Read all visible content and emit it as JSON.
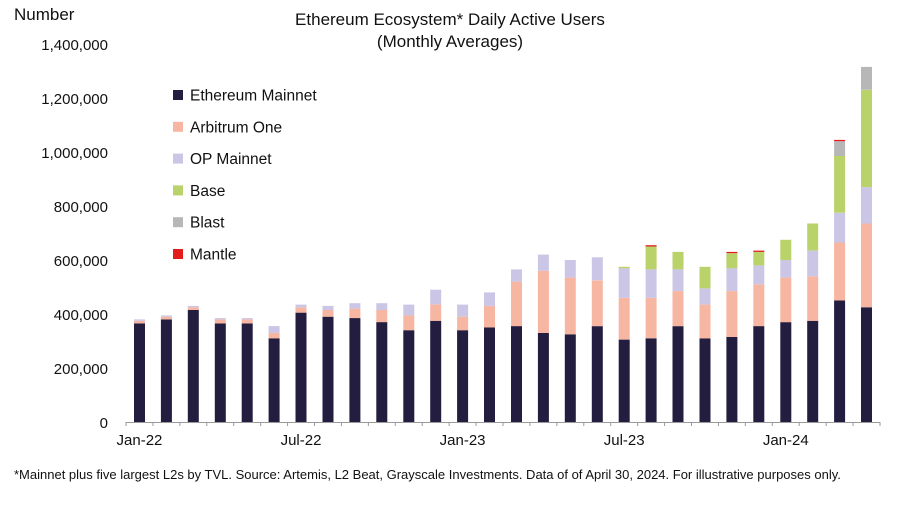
{
  "chart_data": {
    "type": "bar",
    "stacked": true,
    "title": "Ethereum Ecosystem* Daily Active Users",
    "subtitle": "(Monthly Averages)",
    "ylabel": "Number",
    "xlabel": "",
    "ylim": [
      0,
      1400000
    ],
    "yticks": [
      0,
      200000,
      400000,
      600000,
      800000,
      1000000,
      1200000,
      1400000
    ],
    "ytick_labels": [
      "0",
      "200,000",
      "400,000",
      "600,000",
      "800,000",
      "1,000,000",
      "1,200,000",
      "1,400,000"
    ],
    "categories": [
      "Jan-22",
      "Feb-22",
      "Mar-22",
      "Apr-22",
      "May-22",
      "Jun-22",
      "Jul-22",
      "Aug-22",
      "Sep-22",
      "Oct-22",
      "Nov-22",
      "Dec-22",
      "Jan-23",
      "Feb-23",
      "Mar-23",
      "Apr-23",
      "May-23",
      "Jun-23",
      "Jul-23",
      "Aug-23",
      "Sep-23",
      "Oct-23",
      "Nov-23",
      "Dec-23",
      "Jan-24",
      "Feb-24",
      "Mar-24",
      "Apr-24"
    ],
    "xtick_labels": [
      {
        "index": 0,
        "label": "Jan-22"
      },
      {
        "index": 6,
        "label": "Jul-22"
      },
      {
        "index": 12,
        "label": "Jan-23"
      },
      {
        "index": 18,
        "label": "Jul-23"
      },
      {
        "index": 24,
        "label": "Jan-24"
      }
    ],
    "legend_position": "top-left",
    "grid": false,
    "series": [
      {
        "name": "Ethereum Mainnet",
        "color": "#231d3f",
        "values": [
          365000,
          380000,
          415000,
          365000,
          365000,
          310000,
          405000,
          390000,
          385000,
          370000,
          340000,
          375000,
          340000,
          350000,
          355000,
          330000,
          325000,
          355000,
          305000,
          310000,
          355000,
          310000,
          315000,
          355000,
          370000,
          375000,
          450000,
          425000
        ]
      },
      {
        "name": "Arbitrum One",
        "color": "#f7b6a1",
        "values": [
          10000,
          10000,
          10000,
          15000,
          15000,
          20000,
          20000,
          25000,
          35000,
          45000,
          55000,
          60000,
          50000,
          80000,
          165000,
          230000,
          210000,
          170000,
          155000,
          150000,
          130000,
          125000,
          170000,
          155000,
          165000,
          165000,
          215000,
          310000
        ]
      },
      {
        "name": "OP Mainnet",
        "color": "#cbc6e6",
        "values": [
          5000,
          5000,
          5000,
          5000,
          5000,
          25000,
          10000,
          15000,
          20000,
          25000,
          40000,
          55000,
          45000,
          50000,
          45000,
          60000,
          65000,
          85000,
          110000,
          105000,
          80000,
          60000,
          85000,
          70000,
          65000,
          95000,
          110000,
          135000
        ]
      },
      {
        "name": "Base",
        "color": "#b9d26a",
        "values": [
          0,
          0,
          0,
          0,
          0,
          0,
          0,
          0,
          0,
          0,
          0,
          0,
          0,
          0,
          0,
          0,
          0,
          0,
          5000,
          85000,
          65000,
          80000,
          55000,
          50000,
          75000,
          100000,
          210000,
          360000
        ]
      },
      {
        "name": "Blast",
        "color": "#b7b7b7",
        "values": [
          0,
          0,
          0,
          0,
          0,
          0,
          0,
          0,
          0,
          0,
          0,
          0,
          0,
          0,
          0,
          0,
          0,
          0,
          0,
          0,
          0,
          0,
          0,
          0,
          0,
          0,
          55000,
          85000
        ]
      },
      {
        "name": "Mantle",
        "color": "#e31c1c",
        "values": [
          0,
          0,
          0,
          0,
          0,
          0,
          0,
          0,
          0,
          0,
          0,
          0,
          0,
          0,
          0,
          0,
          0,
          0,
          0,
          5000,
          0,
          0,
          5000,
          5000,
          0,
          0,
          5000,
          0
        ]
      }
    ]
  },
  "footnote": "*Mainnet plus five largest L2s by TVL. Source: Artemis, L2 Beat, Grayscale Investments. Data of of April 30, 2024. For illustrative purposes only."
}
